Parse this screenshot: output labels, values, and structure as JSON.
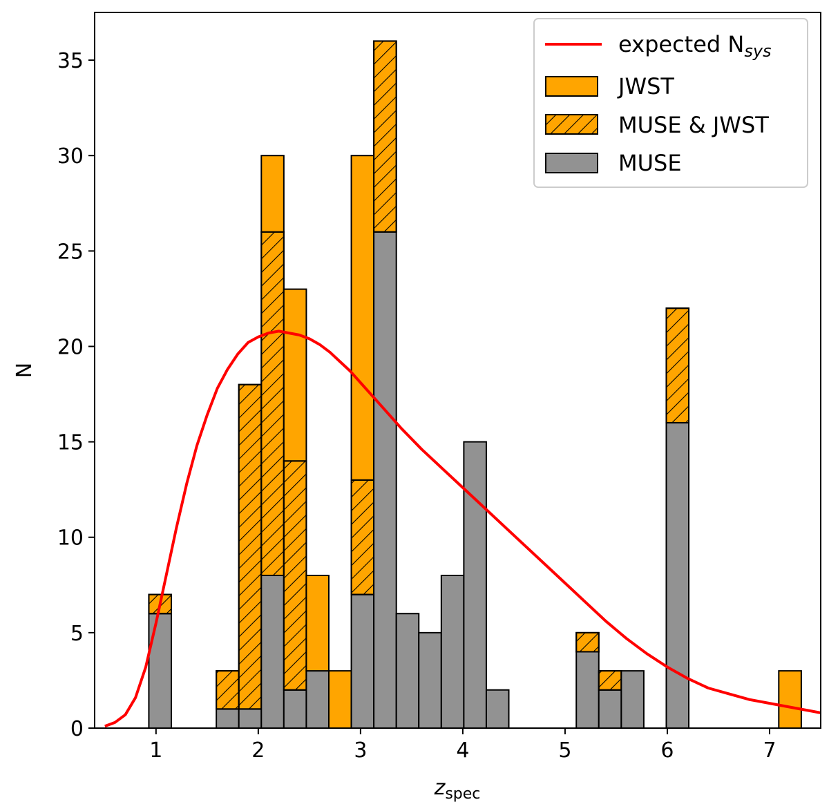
{
  "chart_data": {
    "type": "bar",
    "stacked": true,
    "title": "",
    "xlabel": "z",
    "xlabel_sub": "spec",
    "ylabel": "N",
    "xlim": [
      0.4,
      7.5
    ],
    "ylim": [
      0,
      37.5
    ],
    "bin_width": 0.22,
    "xticks": [
      1,
      2,
      3,
      4,
      5,
      6,
      7
    ],
    "yticks": [
      0,
      5,
      10,
      15,
      20,
      25,
      30,
      35
    ],
    "bin_centers": [
      1.04,
      1.7,
      1.92,
      2.14,
      2.36,
      2.58,
      2.8,
      3.02,
      3.24,
      3.46,
      3.68,
      3.9,
      4.12,
      4.34,
      5.22,
      5.44,
      5.66,
      6.1,
      7.2
    ],
    "series": [
      {
        "name": "MUSE",
        "color": "#929292",
        "hatch": false,
        "values": [
          6,
          1,
          1,
          8,
          2,
          3,
          0,
          7,
          26,
          6,
          5,
          8,
          15,
          2,
          4,
          2,
          3,
          16,
          0
        ]
      },
      {
        "name": "MUSE & JWST",
        "color": "#ffa500",
        "hatch": true,
        "values": [
          1,
          2,
          17,
          18,
          12,
          0,
          0,
          6,
          10,
          0,
          0,
          0,
          0,
          0,
          1,
          1,
          0,
          6,
          0
        ]
      },
      {
        "name": "JWST",
        "color": "#ffa500",
        "hatch": false,
        "values": [
          0,
          0,
          0,
          4,
          9,
          5,
          3,
          17,
          0,
          0,
          0,
          0,
          0,
          0,
          0,
          0,
          0,
          0,
          3
        ]
      }
    ],
    "curve": {
      "name": "expected N_sys",
      "color": "#ff0000",
      "x": [
        0.5,
        0.6,
        0.7,
        0.8,
        0.9,
        1.0,
        1.1,
        1.2,
        1.3,
        1.4,
        1.5,
        1.6,
        1.7,
        1.8,
        1.9,
        2.0,
        2.1,
        2.2,
        2.3,
        2.4,
        2.5,
        2.6,
        2.7,
        2.8,
        2.9,
        3.0,
        3.2,
        3.4,
        3.6,
        3.8,
        4.0,
        4.2,
        4.4,
        4.6,
        4.8,
        5.0,
        5.2,
        5.4,
        5.6,
        5.8,
        6.0,
        6.2,
        6.4,
        6.6,
        6.8,
        7.0,
        7.2,
        7.4,
        7.5
      ],
      "y": [
        0.1,
        0.3,
        0.7,
        1.6,
        3.2,
        5.5,
        8.0,
        10.5,
        12.8,
        14.8,
        16.4,
        17.8,
        18.8,
        19.6,
        20.2,
        20.5,
        20.7,
        20.8,
        20.7,
        20.6,
        20.4,
        20.1,
        19.7,
        19.2,
        18.7,
        18.1,
        16.9,
        15.7,
        14.6,
        13.6,
        12.6,
        11.6,
        10.6,
        9.6,
        8.6,
        7.6,
        6.6,
        5.6,
        4.7,
        3.9,
        3.2,
        2.6,
        2.1,
        1.8,
        1.5,
        1.3,
        1.1,
        0.9,
        0.8
      ]
    },
    "legend": {
      "position": "top-right",
      "entries": [
        {
          "label": "expected N",
          "label_sub": "sys",
          "kind": "line",
          "color": "#ff0000"
        },
        {
          "label": "JWST",
          "kind": "patch",
          "color": "#ffa500",
          "hatch": false
        },
        {
          "label": "MUSE & JWST",
          "kind": "patch",
          "color": "#ffa500",
          "hatch": true
        },
        {
          "label": "MUSE",
          "kind": "patch",
          "color": "#929292",
          "hatch": false
        }
      ]
    }
  }
}
